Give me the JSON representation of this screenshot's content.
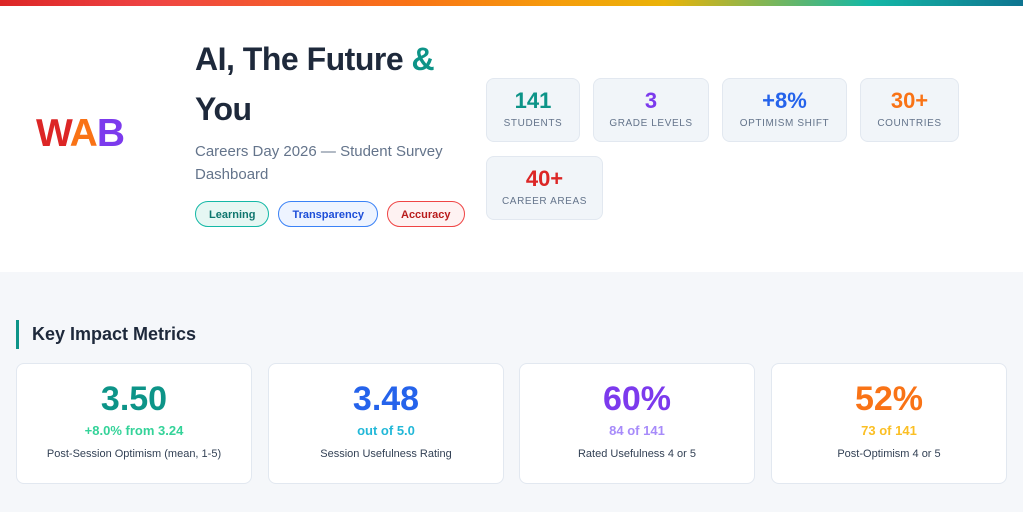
{
  "colors": {
    "teal": "#0d9488",
    "blue": "#2563eb",
    "purple": "#7c3aed",
    "orange": "#f97316",
    "red": "#dc2626"
  },
  "logo": {
    "letters": [
      "W",
      "A",
      "B"
    ]
  },
  "header": {
    "title_main": "AI, The Future ",
    "title_amp": "&",
    "title_end": " You",
    "subtitle": "Careers Day 2026 — Student Survey Dashboard",
    "tags": [
      "Learning",
      "Transparency",
      "Accuracy"
    ]
  },
  "stats": [
    {
      "value": "141",
      "label": "STUDENTS"
    },
    {
      "value": "3",
      "label": "GRADE LEVELS"
    },
    {
      "value": "+8%",
      "label": "OPTIMISM SHIFT"
    },
    {
      "value": "30+",
      "label": "COUNTRIES"
    },
    {
      "value": "40+",
      "label": "CAREER AREAS"
    }
  ],
  "section": {
    "title": "Key Impact Metrics"
  },
  "metrics": [
    {
      "value": "3.50",
      "sub": "+8.0% from 3.24",
      "label": "Post-Session Optimism (mean, 1-5)"
    },
    {
      "value": "3.48",
      "sub": "out of 5.0",
      "label": "Session Usefulness Rating"
    },
    {
      "value": "60%",
      "sub": "84 of 141",
      "label": "Rated Usefulness 4 or 5"
    },
    {
      "value": "52%",
      "sub": "73 of 141",
      "label": "Post-Optimism 4 or 5"
    }
  ]
}
